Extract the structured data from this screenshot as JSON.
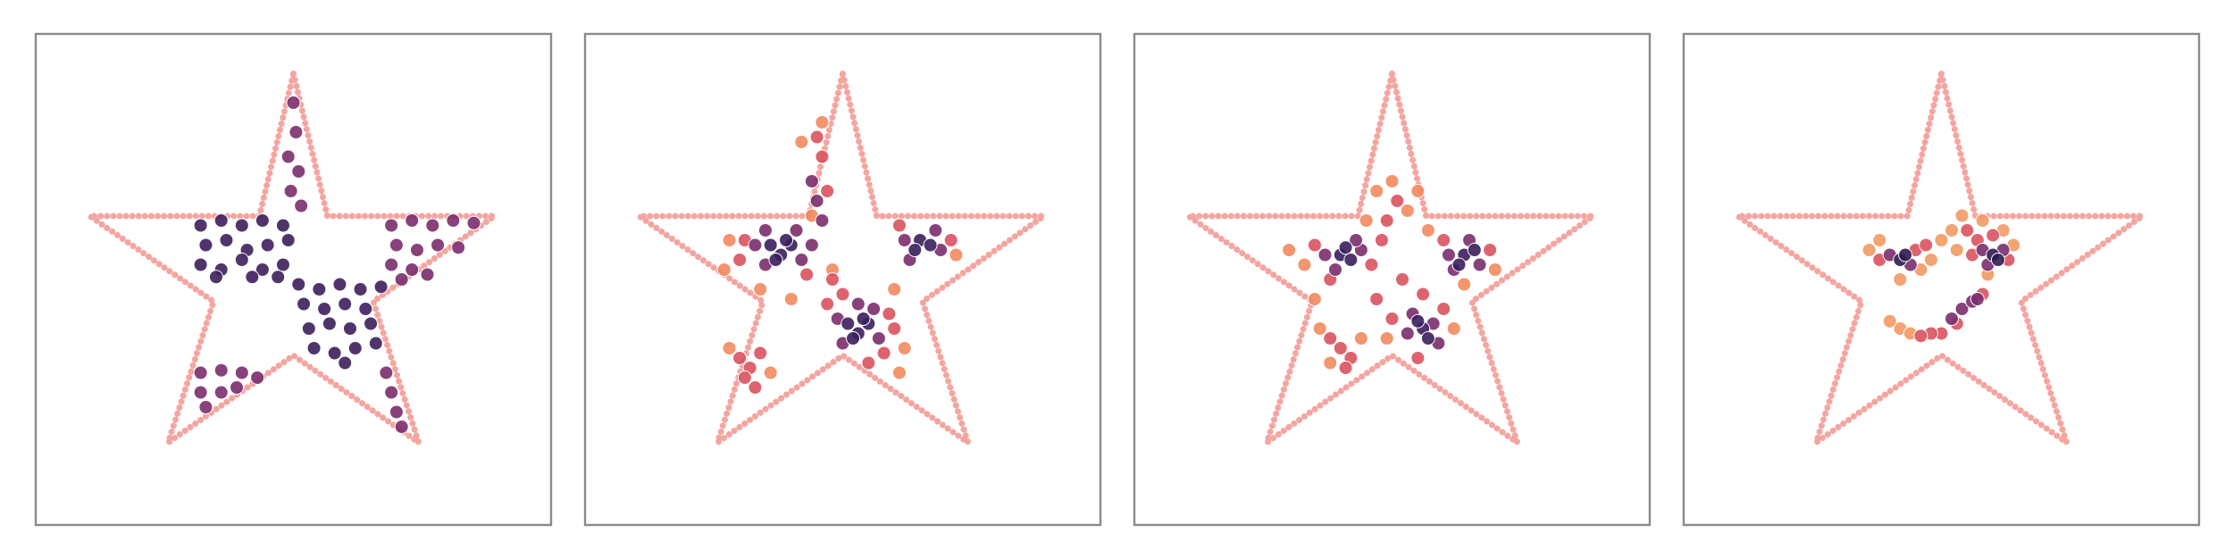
{
  "chart_data": [
    {
      "type": "scatter",
      "xlim": [
        0,
        100
      ],
      "ylim": [
        0,
        100
      ],
      "outline": {
        "color": "#f5a5a0",
        "x": [
          50,
          56.6,
          89,
          65.5,
          74.3,
          50,
          25.7,
          34.5,
          10.5,
          43.4
        ],
        "values": [
          91.9,
          62.9,
          62.9,
          45.5,
          16.8,
          34.5,
          16.8,
          45.5,
          62.9,
          62.9
        ]
      },
      "series": [
        {
          "color": "#3d1f5c",
          "x": [
            32,
            36,
            40,
            44,
            48,
            33,
            37,
            41,
            45,
            49,
            32,
            36,
            40,
            44,
            48,
            35,
            42,
            47,
            51,
            55,
            59,
            63,
            67,
            52,
            56,
            60,
            64,
            53,
            57,
            61,
            65,
            54,
            58,
            62,
            66,
            60
          ],
          "values": [
            61,
            62,
            61,
            62,
            61,
            57,
            58,
            56,
            57,
            58,
            53,
            52,
            54,
            52,
            53,
            50.5,
            50.5,
            50.5,
            49,
            48,
            49,
            48,
            48.5,
            45,
            44,
            45,
            44,
            40,
            41,
            40,
            41,
            36,
            35,
            36,
            37,
            33
          ]
        },
        {
          "color": "#7a2e6e",
          "x": [
            50,
            50.5,
            49,
            51,
            49.5,
            51.5,
            69,
            73,
            77,
            81,
            85,
            70,
            74,
            78,
            82,
            69,
            73,
            76,
            71,
            32,
            36,
            40,
            43,
            32,
            36,
            39,
            33,
            68,
            69,
            70,
            71
          ],
          "values": [
            86,
            80,
            75,
            72,
            68,
            65,
            61,
            62,
            61,
            62,
            61.5,
            57,
            56,
            57,
            56.5,
            53,
            52,
            51,
            50,
            31,
            31.5,
            31,
            30,
            27,
            27,
            28,
            24,
            31,
            27,
            23,
            20
          ]
        }
      ]
    },
    {
      "type": "scatter",
      "xlim": [
        0,
        100
      ],
      "ylim": [
        0,
        100
      ],
      "outline": {
        "color": "#f5a5a0",
        "x": [
          50,
          56.6,
          89,
          65.5,
          74.3,
          50,
          25.7,
          34.5,
          10.5,
          43.4
        ],
        "values": [
          91.9,
          62.9,
          62.9,
          45.5,
          16.8,
          34.5,
          16.8,
          45.5,
          62.9,
          62.9
        ]
      },
      "series": [
        {
          "color": "#f28a5e",
          "x": [
            27,
            28,
            44,
            48,
            62,
            61,
            36,
            28,
            72,
            60,
            42,
            46,
            40,
            34
          ],
          "values": [
            52,
            58,
            63,
            52,
            36,
            31,
            31,
            36,
            55,
            48,
            78,
            82,
            46,
            48
          ]
        },
        {
          "color": "#d9535f",
          "x": [
            31,
            30,
            43,
            47,
            59,
            58,
            60,
            48,
            46,
            45,
            47,
            71,
            61,
            30,
            32,
            34,
            31,
            33,
            55,
            50
          ],
          "values": [
            58,
            54,
            51,
            45,
            43,
            35,
            40,
            50,
            75,
            79,
            68,
            58,
            61,
            34,
            32,
            35,
            30,
            28,
            33,
            47
          ]
        },
        {
          "color": "#7a2e6e",
          "x": [
            33,
            35,
            41,
            42,
            35,
            44,
            49,
            56,
            57,
            50,
            53,
            62,
            68,
            69,
            63,
            46,
            45,
            44
          ],
          "values": [
            57,
            60,
            60,
            54,
            53,
            57,
            42,
            44,
            38,
            37,
            45,
            58,
            60,
            56,
            54,
            62,
            66,
            70
          ]
        },
        {
          "color": "#3a1f5c",
          "x": [
            36,
            38,
            40,
            37,
            39,
            51,
            53,
            55,
            52,
            54,
            65,
            67,
            64
          ],
          "values": [
            57,
            55,
            57,
            54,
            58,
            41,
            39,
            41,
            38,
            42,
            58,
            57,
            56
          ]
        }
      ]
    },
    {
      "type": "scatter",
      "xlim": [
        0,
        100
      ],
      "ylim": [
        0,
        100
      ],
      "outline": {
        "color": "#f5a5a0",
        "x": [
          50,
          56.6,
          89,
          65.5,
          74.3,
          50,
          25.7,
          34.5,
          10.5,
          43.4
        ],
        "values": [
          91.9,
          62.9,
          62.9,
          45.5,
          16.8,
          34.5,
          16.8,
          45.5,
          62.9,
          62.9
        ]
      },
      "series": [
        {
          "color": "#f28a5e",
          "x": [
            33,
            47,
            50,
            53,
            45,
            57,
            70,
            36,
            44,
            62,
            49,
            38,
            30,
            55,
            64,
            35
          ],
          "values": [
            53,
            68,
            70,
            64,
            62,
            60,
            52,
            40,
            38,
            40,
            38,
            33,
            56,
            68,
            49,
            46
          ]
        },
        {
          "color": "#d9535f",
          "x": [
            35,
            46,
            38,
            49,
            51,
            48,
            52,
            60,
            69,
            50,
            60,
            40,
            42,
            38,
            41,
            55,
            56,
            47
          ],
          "values": [
            57,
            53,
            50,
            62,
            66,
            58,
            50,
            58,
            56,
            42,
            44,
            36,
            34,
            38,
            32,
            34,
            47,
            46
          ]
        },
        {
          "color": "#7a2e6e",
          "x": [
            37,
            44,
            39,
            43,
            61,
            67,
            65,
            58,
            53,
            54,
            59,
            62
          ],
          "values": [
            55,
            56,
            52,
            58,
            55,
            53,
            58,
            41,
            39,
            43,
            37,
            52
          ]
        },
        {
          "color": "#3a1f5c",
          "x": [
            40,
            42,
            41,
            64,
            66,
            63,
            56,
            57,
            55
          ],
          "values": [
            55,
            54,
            56.5,
            55,
            56,
            53,
            40,
            38,
            41.5
          ]
        }
      ]
    },
    {
      "type": "scatter",
      "xlim": [
        0,
        100
      ],
      "ylim": [
        0,
        100
      ],
      "outline": {
        "color": "#f5a5a0",
        "x": [
          50,
          56.6,
          89,
          65.5,
          74.3,
          50,
          25.7,
          34.5,
          10.5,
          43.4
        ],
        "values": [
          91.9,
          62.9,
          62.9,
          45.5,
          16.8,
          34.5,
          16.8,
          45.5,
          62.9,
          62.9
        ]
      },
      "series": [
        {
          "color": "#f29a64",
          "x": [
            42,
            44,
            40,
            36,
            38,
            46,
            42,
            52,
            50,
            58,
            54,
            62,
            64,
            53,
            48,
            59
          ],
          "values": [
            40,
            39,
            41.5,
            56,
            58,
            52,
            50,
            60,
            58,
            62,
            63,
            60,
            57,
            56,
            54,
            51
          ]
        },
        {
          "color": "#d9535f",
          "x": [
            38,
            45,
            56,
            63,
            50,
            48,
            46,
            53,
            58,
            57,
            55,
            60,
            47
          ],
          "values": [
            54,
            56,
            55,
            54,
            39,
            39,
            38.5,
            41,
            47,
            58,
            60,
            59,
            57
          ]
        },
        {
          "color": "#7a2e6e",
          "x": [
            40,
            44,
            58,
            62,
            59,
            54,
            56,
            57,
            52
          ],
          "values": [
            55,
            53,
            56,
            56,
            53,
            44,
            45.5,
            46,
            42
          ]
        },
        {
          "color": "#2f1b4e",
          "x": [
            42,
            43,
            60,
            61
          ],
          "values": [
            54,
            55,
            55,
            54
          ]
        }
      ]
    }
  ]
}
